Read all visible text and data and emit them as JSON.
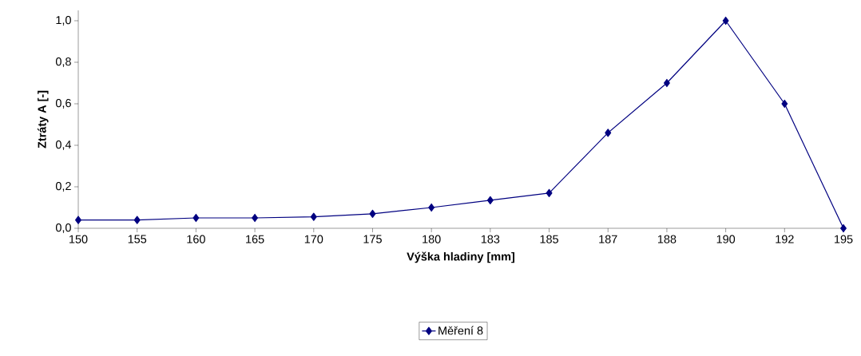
{
  "chart_data": {
    "type": "line",
    "xlabel": "Výška hladiny [mm]",
    "ylabel": "Ztráty A [-]",
    "categories": [
      "150",
      "155",
      "160",
      "165",
      "170",
      "175",
      "180",
      "183",
      "185",
      "187",
      "188",
      "190",
      "192",
      "195"
    ],
    "series": [
      {
        "name": "Měření 8",
        "color": "#000080",
        "values": [
          0.04,
          0.04,
          0.05,
          0.05,
          0.055,
          0.07,
          0.1,
          0.135,
          0.17,
          0.46,
          0.7,
          1.0,
          0.6,
          0.0
        ]
      }
    ],
    "ylim": [
      0,
      1.05
    ],
    "yticks": [
      {
        "value": 0,
        "label": "0,0"
      },
      {
        "value": 0.2,
        "label": "0,2"
      },
      {
        "value": 0.4,
        "label": "0,4"
      },
      {
        "value": 0.6,
        "label": "0,6"
      },
      {
        "value": 0.8,
        "label": "0,8"
      },
      {
        "value": 1.0,
        "label": "1,0"
      }
    ],
    "grid": false,
    "legend": "bottom",
    "marker": "diamond",
    "line_style": "solid"
  }
}
